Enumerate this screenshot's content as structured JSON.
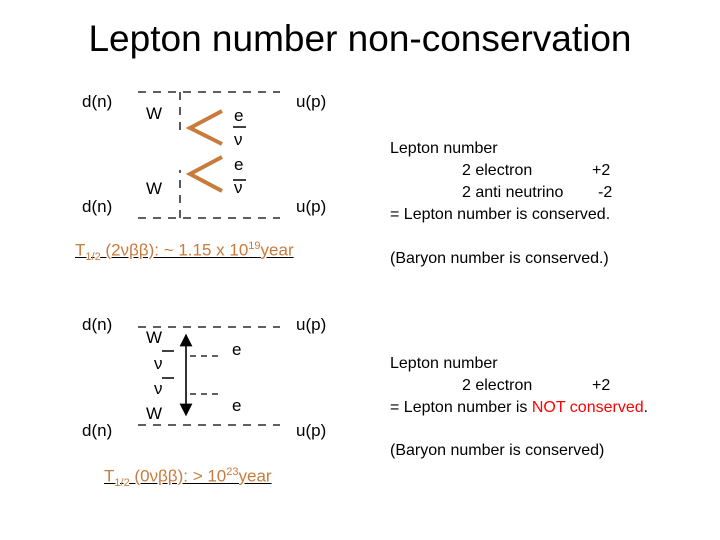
{
  "title": "Lepton number non-conservation",
  "diagram1": {
    "quark_in_top": "d(n)",
    "quark_in_bottom": "d(n)",
    "boson_top": "W",
    "boson_bottom": "W",
    "electron_top": "e",
    "antineutrino_top": "ν",
    "electron_bottom": "e",
    "antineutrino_bottom": "ν",
    "quark_out_top": "u(p)",
    "quark_out_bottom": "u(p)"
  },
  "halflife1": {
    "prefix": "T",
    "sub": "1/2",
    "mode": " (2νββ): ~  1.15 x 10",
    "exp": "19",
    "unit": "year"
  },
  "info1": {
    "heading": "Lepton number",
    "line1_label": "2 electron",
    "line1_value": "+2",
    "line2_label": "2 anti neutrino",
    "line2_value": "-2",
    "conclusion": "= Lepton number is conserved.",
    "baryon": "(Baryon number is conserved.)"
  },
  "diagram2": {
    "quark_in_top": "d(n)",
    "quark_in_bottom": "d(n)",
    "boson_top": "W",
    "boson_bottom": "W",
    "neutrino_top": "ν",
    "neutrino_bottom": "ν",
    "electron_top": "e",
    "electron_bottom": "e",
    "quark_out_top": "u(p)",
    "quark_out_bottom": "u(p)"
  },
  "halflife2": {
    "prefix": "T",
    "sub": "1/2",
    "mode": " (0νββ): >  10",
    "exp": "23",
    "unit": "year"
  },
  "info2": {
    "heading": "Lepton number",
    "line1_label": "2 electron",
    "line1_value": "+2",
    "conclusion_prefix": "= Lepton number is ",
    "conclusion_highlight": "NOT conserved",
    "conclusion_suffix": ".",
    "baryon": "(Baryon number is conserved)"
  },
  "colors": {
    "line": "#000000",
    "arrow": "#c87c3c",
    "halflife": "#c87c3c",
    "highlight": "#ff0000"
  }
}
